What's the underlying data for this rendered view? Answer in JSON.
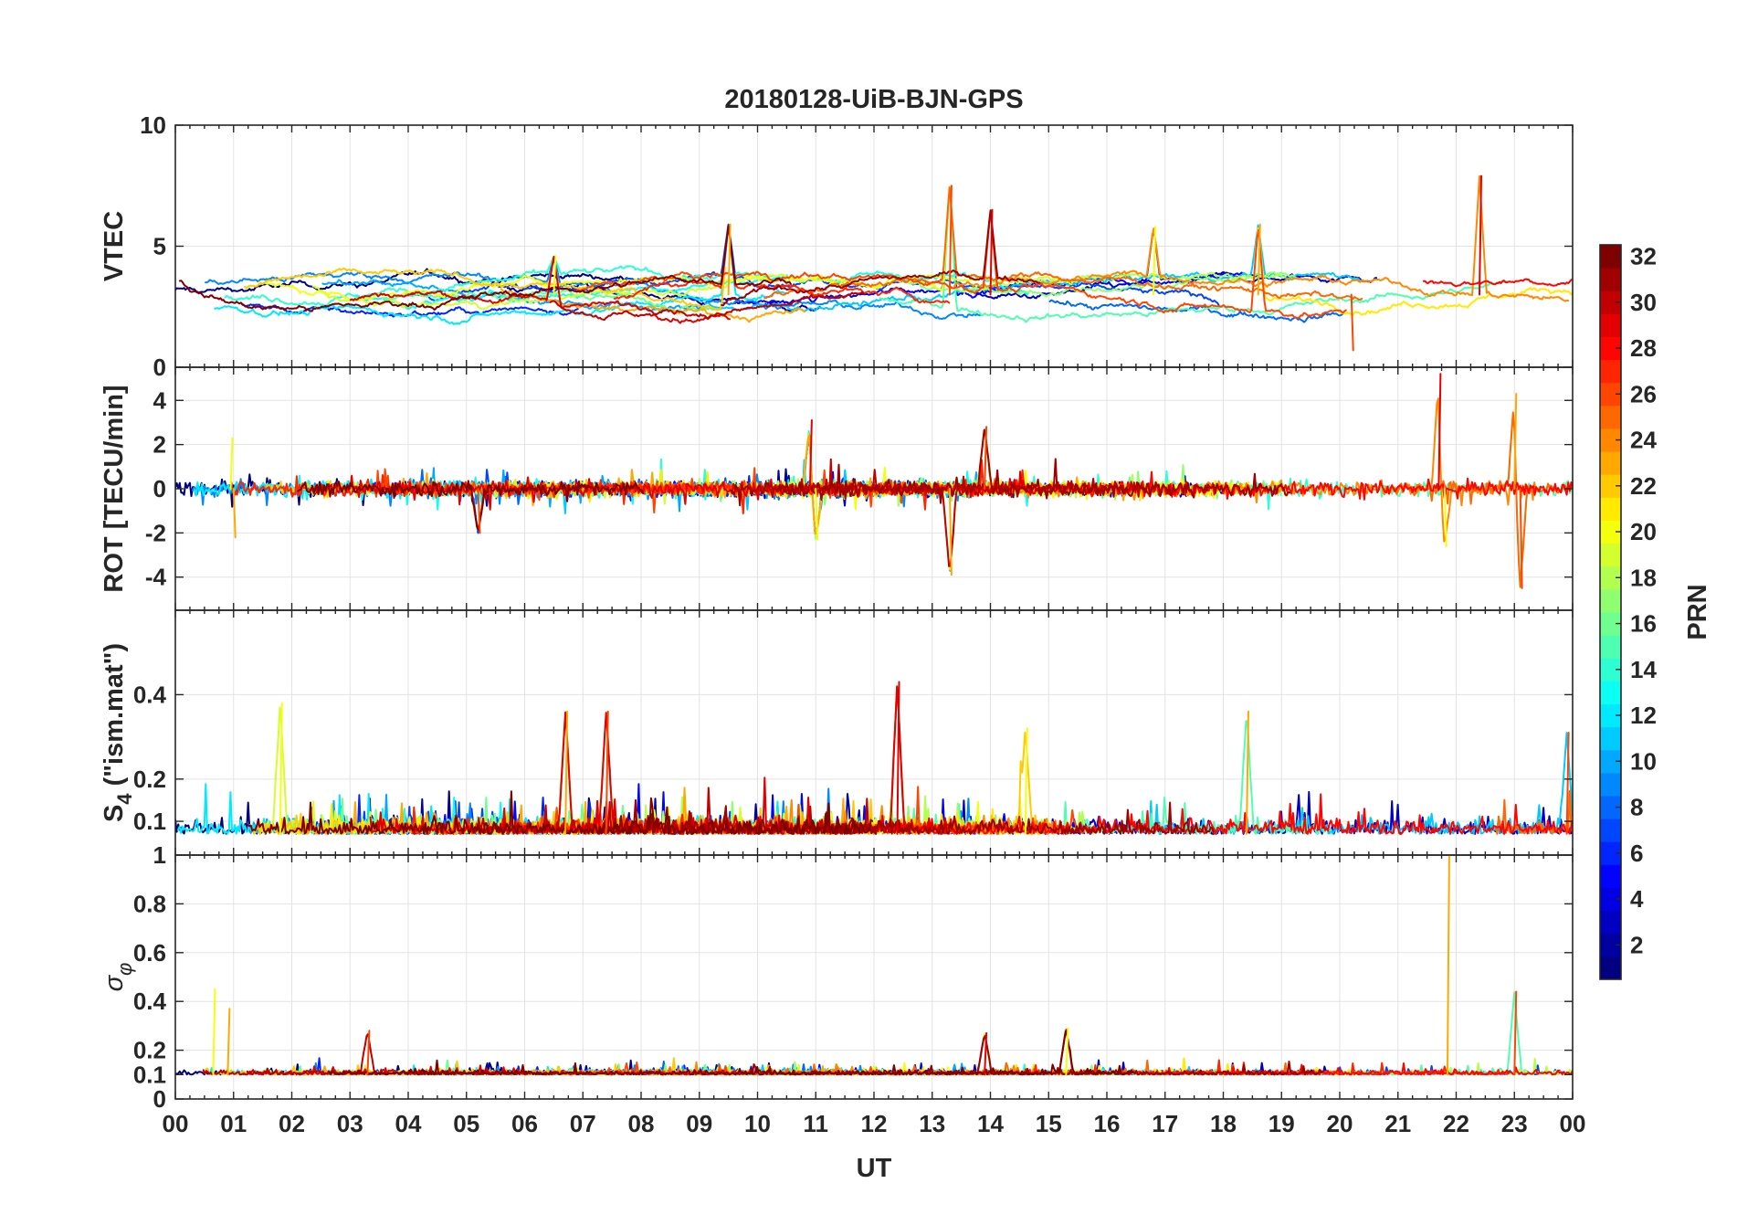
{
  "figure": {
    "title": "20180128-UiB-BJN-GPS",
    "xlabel": "UT"
  },
  "chart_data": {
    "type": "line",
    "x_tick_labels": [
      "00",
      "01",
      "02",
      "03",
      "04",
      "05",
      "06",
      "07",
      "08",
      "09",
      "10",
      "11",
      "12",
      "13",
      "14",
      "15",
      "16",
      "17",
      "18",
      "19",
      "20",
      "21",
      "22",
      "23",
      "00"
    ],
    "x_range_hours": [
      0,
      24
    ],
    "panels": [
      {
        "id": "vtec",
        "ylabel": "VTEC",
        "ylim": [
          0,
          10
        ],
        "yticks": [
          0,
          5,
          10
        ],
        "ytick_labels": [
          "0",
          "5",
          "10"
        ],
        "baseline": 3,
        "noise": 0.3,
        "features": [
          {
            "hour": 6.5,
            "value": 4.6
          },
          {
            "hour": 9.5,
            "value": 5.9
          },
          {
            "hour": 13.3,
            "value": 7.5
          },
          {
            "hour": 14.0,
            "value": 6.5
          },
          {
            "hour": 16.8,
            "value": 5.8
          },
          {
            "hour": 18.6,
            "value": 5.9
          },
          {
            "hour": 20.2,
            "value": 0.7
          },
          {
            "hour": 22.4,
            "value": 7.9
          }
        ]
      },
      {
        "id": "rot",
        "ylabel": "ROT [TECU/min]",
        "ylim": [
          -5.5,
          5.5
        ],
        "yticks": [
          -4,
          -2,
          0,
          2,
          4
        ],
        "ytick_labels": [
          "-4",
          "-2",
          "0",
          "2",
          "4"
        ],
        "baseline": 0,
        "noise": 0.3,
        "features": [
          {
            "hour": 0.95,
            "value": 2.3
          },
          {
            "hour": 1.0,
            "value": -2.2
          },
          {
            "hour": 5.2,
            "value": -2.0
          },
          {
            "hour": 10.9,
            "value": 3.1
          },
          {
            "hour": 11.0,
            "value": -2.3
          },
          {
            "hour": 13.3,
            "value": -3.9
          },
          {
            "hour": 13.9,
            "value": 2.8
          },
          {
            "hour": 21.7,
            "value": 5.2
          },
          {
            "hour": 21.8,
            "value": -2.6
          },
          {
            "hour": 23.0,
            "value": 4.3
          },
          {
            "hour": 23.1,
            "value": -4.5
          }
        ]
      },
      {
        "id": "s4",
        "ylabel": "S4 (\"ism.mat\")",
        "ylabel_main": "S",
        "ylabel_sub": "4",
        "ylabel_rest": " (\"ism.mat\")",
        "ylim": [
          0.02,
          0.6
        ],
        "yticks": [
          0.1,
          0.2,
          0.4
        ],
        "ytick_labels": [
          "0.1",
          "0.2",
          "0.4"
        ],
        "baseline": 0.07,
        "noise": 0.03,
        "features": [
          {
            "hour": 1.8,
            "value": 0.38
          },
          {
            "hour": 6.7,
            "value": 0.36
          },
          {
            "hour": 7.4,
            "value": 0.36
          },
          {
            "hour": 12.4,
            "value": 0.43
          },
          {
            "hour": 14.6,
            "value": 0.32
          },
          {
            "hour": 18.4,
            "value": 0.36
          },
          {
            "hour": 23.9,
            "value": 0.31
          }
        ]
      },
      {
        "id": "sigma",
        "ylabel": "σφ",
        "ylabel_main": "σ",
        "ylabel_sub": "φ",
        "ylim": [
          0,
          1
        ],
        "yticks": [
          0,
          0.1,
          0.2,
          0.4,
          0.6,
          0.8,
          1
        ],
        "ytick_labels": [
          "0",
          "0.1",
          "0.2",
          "0.4",
          "0.6",
          "0.8",
          "1"
        ],
        "baseline": 0.1,
        "noise": 0.015,
        "features": [
          {
            "hour": 0.65,
            "value": 0.45
          },
          {
            "hour": 0.9,
            "value": 0.37
          },
          {
            "hour": 3.3,
            "value": 0.28
          },
          {
            "hour": 13.9,
            "value": 0.27
          },
          {
            "hour": 15.3,
            "value": 0.29
          },
          {
            "hour": 21.85,
            "value": 1.0
          },
          {
            "hour": 23.0,
            "value": 0.44
          }
        ]
      }
    ],
    "colorbar": {
      "label": "PRN",
      "range": [
        1,
        32
      ],
      "ticks": [
        2,
        4,
        6,
        8,
        10,
        12,
        14,
        16,
        18,
        20,
        22,
        24,
        26,
        28,
        30,
        32
      ],
      "tick_labels": [
        "2",
        "4",
        "6",
        "8",
        "10",
        "12",
        "14",
        "16",
        "18",
        "20",
        "22",
        "24",
        "26",
        "28",
        "30",
        "32"
      ],
      "colormap": "jet"
    }
  }
}
